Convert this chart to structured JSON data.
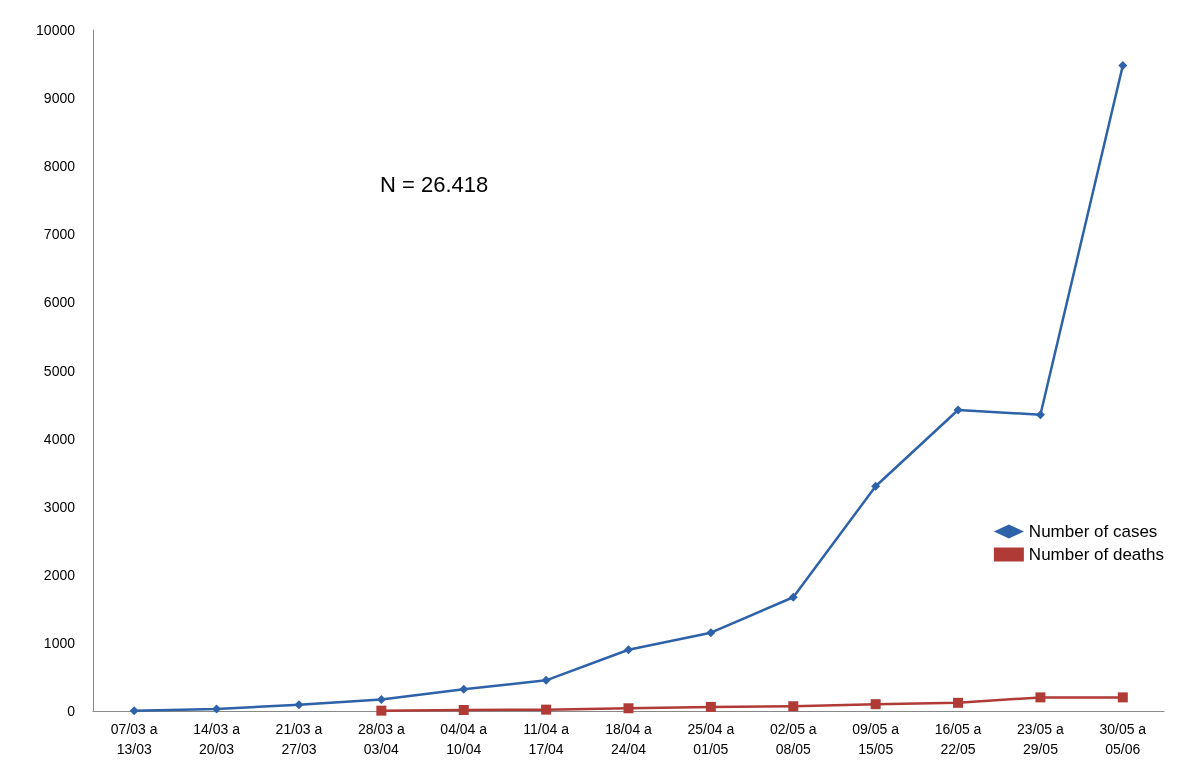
{
  "chart_data": {
    "type": "line",
    "categories": [
      "07/03 a\n13/03",
      "14/03 a\n20/03",
      "21/03 a\n27/03",
      "28/03 a\n03/04",
      "04/04 a\n10/04",
      "11/04 a\n17/04",
      "18/04 a\n24/04",
      "25/04 a\n01/05",
      "02/05 a\n08/05",
      "09/05 a\n15/05",
      "16/05 a\n22/05",
      "23/05 a\n29/05",
      "30/05 a\n05/06"
    ],
    "series": [
      {
        "name": "Number of cases",
        "color": "#2e62a8",
        "marker": "diamond",
        "values": [
          5,
          30,
          90,
          170,
          320,
          450,
          900,
          1150,
          1670,
          3300,
          4420,
          4350,
          9480
        ]
      },
      {
        "name": "Number of deaths",
        "color": "#b03a36",
        "marker": "square",
        "values": [
          null,
          null,
          null,
          5,
          15,
          20,
          40,
          60,
          70,
          100,
          120,
          200,
          200
        ]
      }
    ],
    "ylim": [
      0,
      10000
    ],
    "yticks": [
      0,
      1000,
      2000,
      3000,
      4000,
      5000,
      6000,
      7000,
      8000,
      9000,
      10000
    ],
    "grid": false,
    "legend": "right",
    "annotations": [
      "N = 26.418"
    ]
  }
}
